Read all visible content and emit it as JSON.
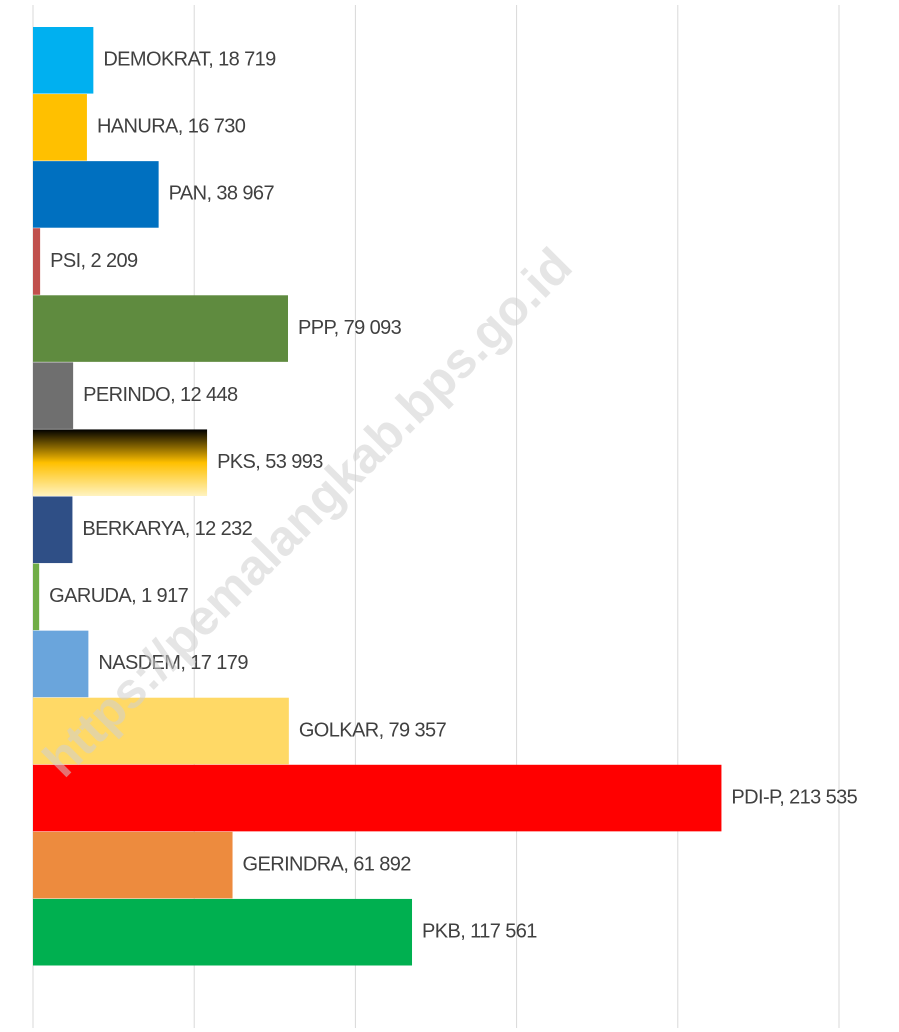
{
  "chart_data": {
    "type": "hbar",
    "categories": [
      "DEMOKRAT",
      "HANURA",
      "PAN",
      "PSI",
      "PPP",
      "PERINDO",
      "PKS",
      "BERKARYA",
      "GARUDA",
      "NASDEM",
      "GOLKAR",
      "PDI-P",
      "GERINDRA",
      "PKB"
    ],
    "values": [
      18719,
      16730,
      38967,
      2209,
      79093,
      12448,
      53993,
      12232,
      1917,
      17179,
      79357,
      213535,
      61892,
      117561
    ],
    "value_labels": [
      "18 719",
      "16 730",
      "38 967",
      "2 209",
      "79 093",
      "12 448",
      "53 993",
      "12 232",
      "1 917",
      "17 179",
      "79 357",
      "213 535",
      "61 892",
      "117 561"
    ],
    "label_separator": ", ",
    "colors": [
      "#00b0f0",
      "#ffc000",
      "#0070c0",
      "#c0504d",
      "#5f8b3f",
      "#6f6f6f",
      [
        "#000000",
        "#ffc000",
        "#fff3c0"
      ],
      "#2f4f86",
      "#70ad47",
      "#6aa5dc",
      "#ffd966",
      "#ff0000",
      "#ed8b3e",
      "#00b050"
    ],
    "xlim": [
      0,
      250000
    ],
    "xticks": [
      0,
      50000,
      100000,
      150000,
      200000,
      250000
    ],
    "grid": true,
    "watermark": "https://pemalangkab.bps.go.id"
  }
}
